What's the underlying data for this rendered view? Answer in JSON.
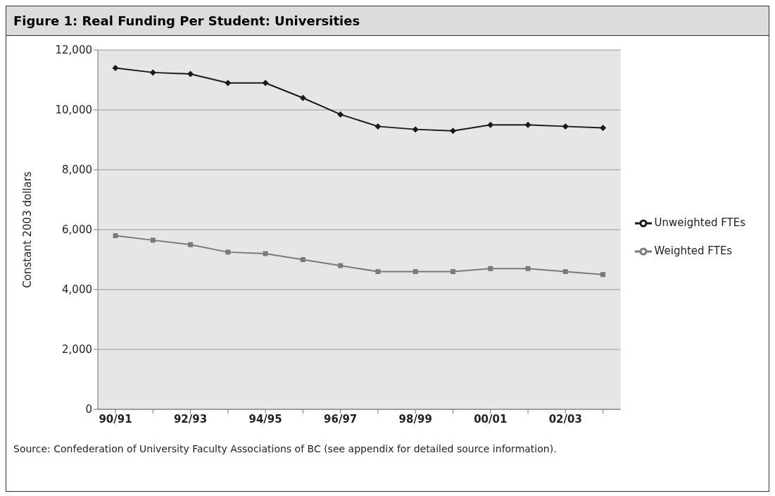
{
  "chart_data": {
    "type": "line",
    "title": "Figure 1: Real Funding Per Student: Universities",
    "ylabel": "Constant 2003 dollars",
    "categories": [
      "90/91",
      null,
      "92/93",
      null,
      "94/95",
      null,
      "96/97",
      null,
      "98/99",
      null,
      "00/01",
      null,
      "02/03",
      null
    ],
    "series": [
      {
        "name": "Unweighted FTEs",
        "color": "#1a1a1a",
        "marker": "diamond",
        "values": [
          11400,
          11250,
          11200,
          10900,
          10900,
          10400,
          9850,
          9450,
          9350,
          9300,
          9500,
          9500,
          9450,
          9400
        ]
      },
      {
        "name": "Weighted FTEs",
        "color": "#7a7a7a",
        "marker": "square",
        "values": [
          5800,
          5650,
          5500,
          5250,
          5200,
          5000,
          4800,
          4600,
          4600,
          4600,
          4700,
          4700,
          4600,
          4500
        ]
      }
    ],
    "ylim": [
      0,
      12000
    ],
    "yticks": [
      0,
      {
        "value": 2000,
        "label": "2,000"
      },
      {
        "value": 4000,
        "label": "4,000"
      },
      {
        "value": 6000,
        "label": "6,000"
      },
      {
        "value": 8000,
        "label": "8,000"
      },
      {
        "value": 10000,
        "label": "10,000"
      },
      {
        "value": 12000,
        "label": "12,000"
      }
    ],
    "grid": "y",
    "legend": "right",
    "annotations": [
      "Source: Confederation of University Faculty Associations of BC (see appendix for detailed source information)."
    ]
  }
}
